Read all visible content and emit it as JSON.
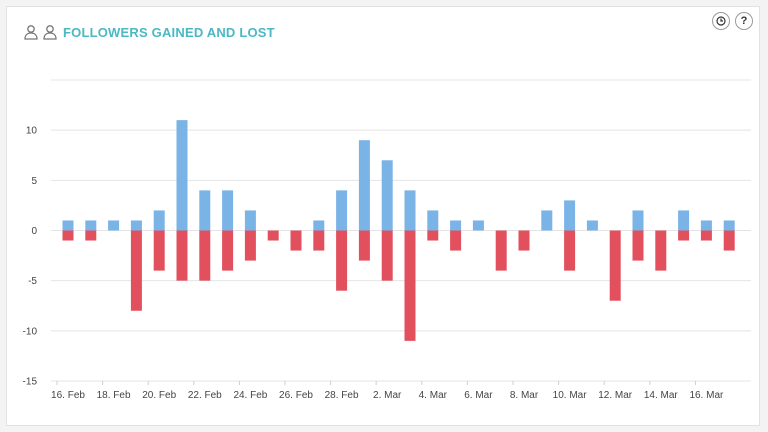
{
  "header": {
    "title": "FOLLOWERS GAINED AND LOST",
    "title_color": "#4bb8c4",
    "icons": [
      "user-outline-icon",
      "user-outline-icon"
    ]
  },
  "toolbar": {
    "history_icon": "clock-icon",
    "help_label": "?"
  },
  "colors": {
    "gained": "#7ab3e6",
    "lost": "#e2505e",
    "grid": "#e4e4e4"
  },
  "chart_data": {
    "type": "bar",
    "stacked": true,
    "x": [
      "16. Feb",
      "17. Feb",
      "18. Feb",
      "19. Feb",
      "20. Feb",
      "21. Feb",
      "22. Feb",
      "23. Feb",
      "24. Feb",
      "25. Feb",
      "26. Feb",
      "27. Feb",
      "28. Feb",
      "1. Mar",
      "2. Mar",
      "3. Mar",
      "4. Mar",
      "5. Mar",
      "6. Mar",
      "7. Mar",
      "8. Mar",
      "9. Mar",
      "10. Mar",
      "11. Mar",
      "12. Mar",
      "13. Mar",
      "14. Mar",
      "15. Mar",
      "16. Mar",
      "17. Mar"
    ],
    "tick_labels": [
      "16. Feb",
      "18. Feb",
      "20. Feb",
      "22. Feb",
      "24. Feb",
      "26. Feb",
      "28. Feb",
      "2. Mar",
      "4. Mar",
      "6. Mar",
      "8. Mar",
      "10. Mar",
      "12. Mar",
      "14. Mar",
      "16. Mar"
    ],
    "series": [
      {
        "values": [
          1,
          1,
          1,
          1,
          2,
          11,
          4,
          4,
          2,
          0,
          0,
          1,
          4,
          9,
          7,
          4,
          2,
          1,
          1,
          0,
          0,
          2,
          3,
          1,
          0,
          2,
          0,
          2,
          1,
          1
        ]
      },
      {
        "values": [
          -1,
          -1,
          0,
          -8,
          -4,
          -5,
          -5,
          -4,
          -3,
          -1,
          -2,
          -2,
          -6,
          -3,
          -5,
          -11,
          -1,
          -2,
          0,
          -4,
          -2,
          0,
          -4,
          0,
          -7,
          -3,
          -4,
          -1,
          -1,
          -2
        ]
      }
    ],
    "ylim": [
      -15,
      15
    ],
    "yticks": [
      10,
      5,
      0,
      -5,
      -10,
      -15
    ],
    "grid": true,
    "title": "FOLLOWERS GAINED AND LOST"
  }
}
